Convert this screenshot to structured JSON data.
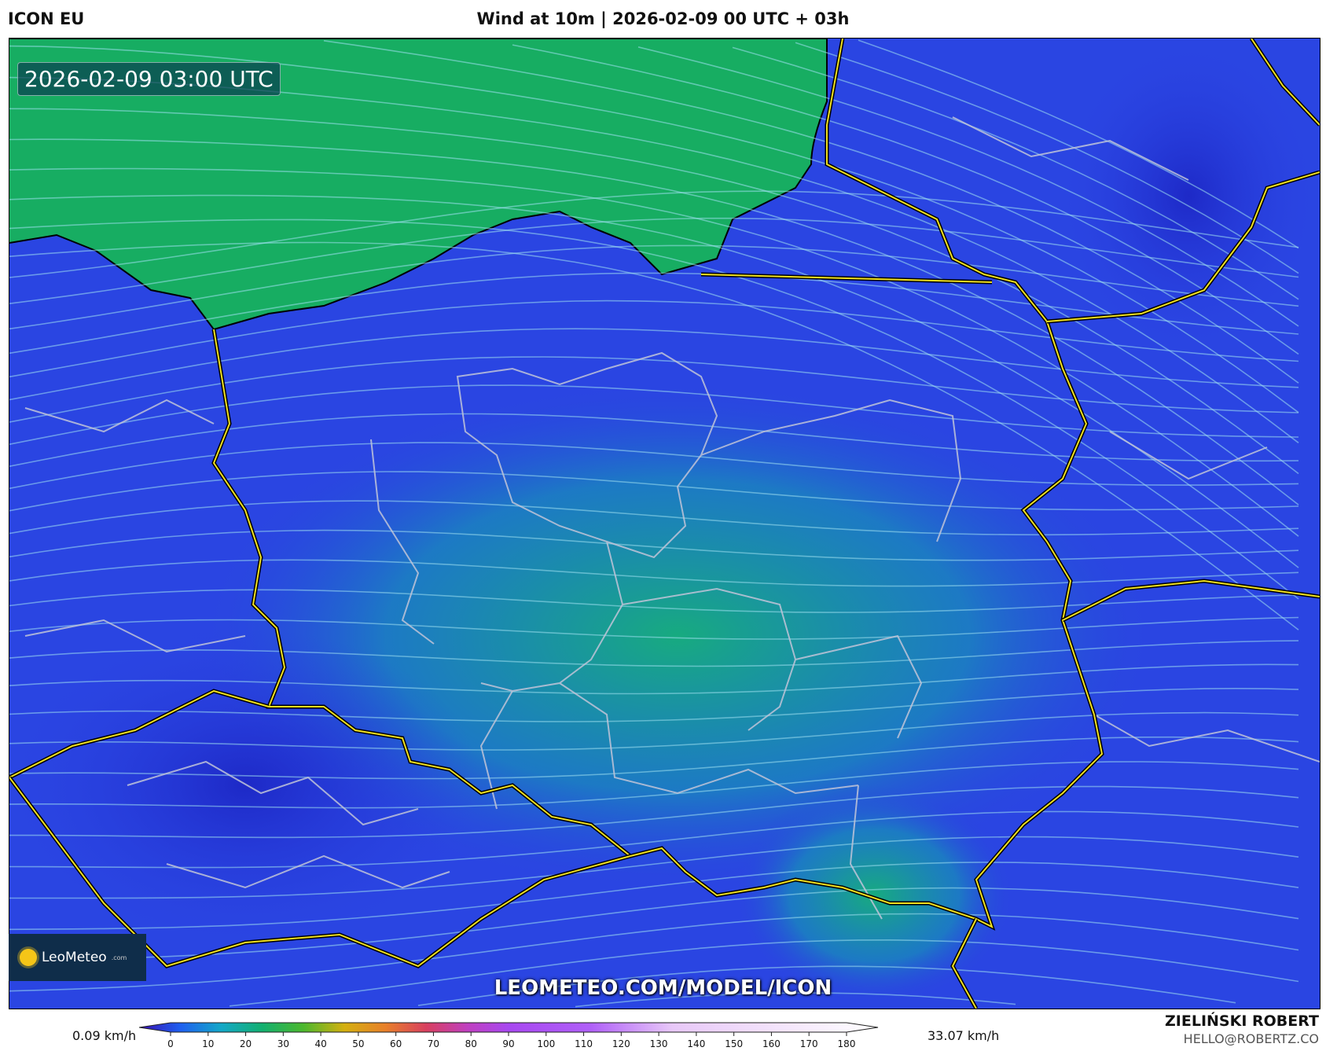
{
  "header": {
    "model": "ICON EU",
    "title": "Wind at 10m | 2026-02-09 00 UTC + 03h"
  },
  "map": {
    "valid_time": "2026-02-09 03:00 UTC",
    "watermark": "LEOMETEO.COM/MODEL/ICON",
    "logo": {
      "name": "LeoMeteo",
      "suffix": ".com"
    },
    "colors": {
      "calm": "#2a3fe0",
      "moderate": "#19b36b",
      "border_country": "#f0e020",
      "border_region": "#c0c4d8",
      "coast": "#000000",
      "streamline": "#9fe0f0"
    }
  },
  "legend": {
    "min_label": "0.09 km/h",
    "max_label": "33.07 km/h",
    "unit": "km/h",
    "ticks": [
      "0",
      "10",
      "20",
      "30",
      "40",
      "50",
      "60",
      "70",
      "80",
      "90",
      "100",
      "110",
      "120",
      "130",
      "140",
      "150",
      "160",
      "170",
      "180"
    ],
    "stops": [
      [
        "0",
        "#3a0fb0"
      ],
      [
        "10",
        "#1f5ff0"
      ],
      [
        "20",
        "#14a8c8"
      ],
      [
        "30",
        "#13b070"
      ],
      [
        "40",
        "#4cb82e"
      ],
      [
        "50",
        "#d4b010"
      ],
      [
        "60",
        "#e8802a"
      ],
      [
        "70",
        "#d84060"
      ],
      [
        "80",
        "#c040c0"
      ],
      [
        "90",
        "#a848f0"
      ],
      [
        "110",
        "#b060f8"
      ],
      [
        "130",
        "#e8c8f8"
      ],
      [
        "180",
        "#ffffff"
      ]
    ]
  },
  "credits": {
    "author": "ZIELIŃSKI ROBERT",
    "email": "HELLO@ROBERTZ.CO"
  }
}
